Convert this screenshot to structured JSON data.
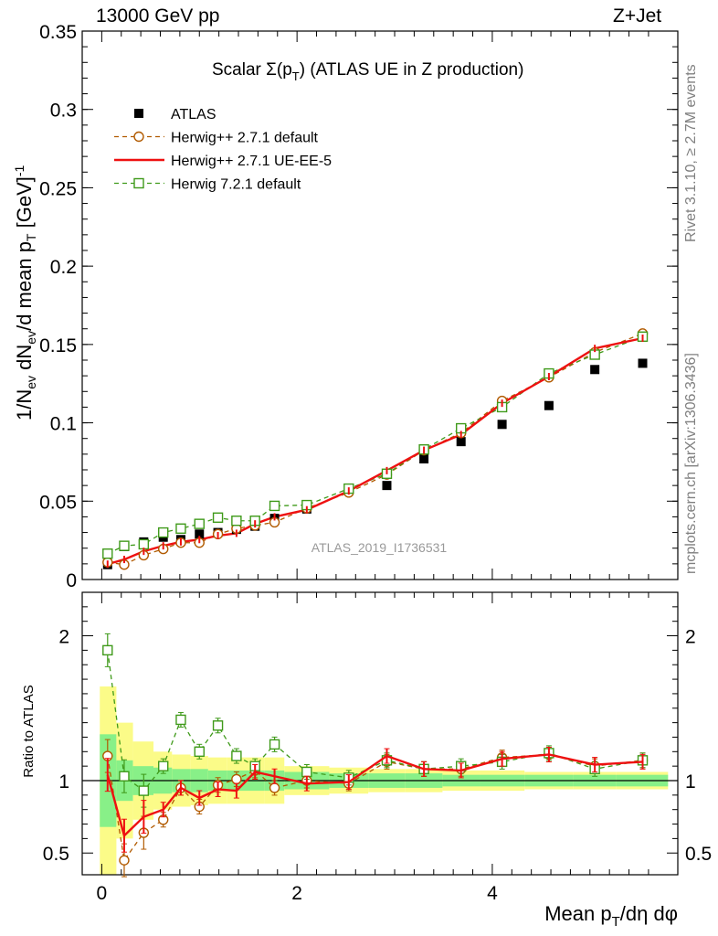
{
  "header": {
    "left": "13000 GeV pp",
    "right": "Z+Jet"
  },
  "side_labels": {
    "rivet": "Rivet 3.1.10, ≥ 2.7M events",
    "mcplots": "mcplots.cern.ch [arXiv:1306.3436]"
  },
  "colors": {
    "atlas": "#000000",
    "herwig_pp_default": "#b15a00",
    "herwig_pp_ueee5": "#ee1111",
    "herwig_7": "#3f9a1a",
    "band_inner": "#88f088",
    "band_outer": "#fbfb88"
  },
  "chart_data": [
    {
      "type": "scatter",
      "panel": "main",
      "title": "Scalar Σ(pT) (ATLAS UE in Z production)",
      "xlabel": "Mean pT/dη dφ",
      "ylabel": "1/Nev dNev/d mean pT [GeV]⁻¹",
      "watermark": "ATLAS_2019_I1736531",
      "xlim": [
        -0.2,
        5.9
      ],
      "ylim": [
        0,
        0.35
      ],
      "yticks": [
        0,
        0.05,
        0.1,
        0.15,
        0.2,
        0.25,
        0.3,
        0.35
      ],
      "ytick_labels": [
        "0",
        "0.05",
        "0.1",
        "0.15",
        "0.2",
        "0.25",
        "0.3",
        "0.35"
      ],
      "legend_position": "top-left",
      "x": [
        0.06,
        0.23,
        0.43,
        0.63,
        0.81,
        1.0,
        1.19,
        1.38,
        1.57,
        1.77,
        2.1,
        2.53,
        2.92,
        3.3,
        3.68,
        4.1,
        4.58,
        5.05,
        5.54
      ],
      "series": [
        {
          "name": "ATLAS",
          "marker": "filled-square",
          "values": [
            0.0095,
            0.021,
            0.024,
            0.027,
            0.0255,
            0.029,
            0.03,
            0.032,
            0.034,
            0.039,
            0.045,
            0.057,
            0.06,
            0.077,
            0.088,
            0.099,
            0.111,
            0.134,
            0.138
          ]
        },
        {
          "name": "Herwig++ 2.7.1 default",
          "marker": "open-circle",
          "line": "dashed",
          "values": [
            0.011,
            0.0095,
            0.0155,
            0.0195,
            0.0235,
            0.0235,
            0.029,
            0.0325,
            0.0345,
            0.0365,
            0.0455,
            0.0555,
            0.067,
            0.0825,
            0.0935,
            0.114,
            0.129,
            0.145,
            0.157
          ]
        },
        {
          "name": "Herwig++ 2.7.1 UE-EE-5",
          "marker": "none",
          "line": "solid",
          "values": [
            0.0098,
            0.0128,
            0.018,
            0.0215,
            0.024,
            0.0255,
            0.028,
            0.0295,
            0.0355,
            0.04,
            0.0445,
            0.0565,
            0.0695,
            0.0825,
            0.0925,
            0.1125,
            0.1295,
            0.1475,
            0.154
          ]
        },
        {
          "name": "Herwig 7.2.1 default",
          "marker": "open-square",
          "line": "dashed",
          "values": [
            0.0165,
            0.0215,
            0.0225,
            0.03,
            0.0325,
            0.0355,
            0.0395,
            0.0375,
            0.0375,
            0.047,
            0.0475,
            0.058,
            0.0675,
            0.083,
            0.0965,
            0.11,
            0.1315,
            0.1435,
            0.155
          ]
        }
      ]
    },
    {
      "type": "line",
      "panel": "ratio",
      "ylabel": "Ratio to ATLAS",
      "xlabel": "Mean pT/dη dφ",
      "xlim": [
        -0.2,
        5.9
      ],
      "ylim": [
        0.35,
        2.3
      ],
      "yticks": [
        0.5,
        1,
        2
      ],
      "ytick_labels": [
        "0.5",
        "1",
        "2"
      ],
      "xticks": [
        0,
        2,
        4
      ],
      "xtick_labels": [
        "0",
        "2",
        "4"
      ],
      "x": [
        0.06,
        0.23,
        0.43,
        0.63,
        0.81,
        1.0,
        1.19,
        1.38,
        1.57,
        1.77,
        2.1,
        2.53,
        2.92,
        3.3,
        3.68,
        4.1,
        4.58,
        5.05,
        5.54
      ],
      "bin_edges": [
        -0.02,
        0.15,
        0.32,
        0.53,
        0.72,
        0.91,
        1.09,
        1.28,
        1.47,
        1.67,
        1.87,
        2.33,
        2.73,
        3.11,
        3.49,
        3.87,
        4.33,
        4.83,
        5.27,
        5.8
      ],
      "uncertainty_band_inner": [
        0.32,
        0.14,
        0.1,
        0.09,
        0.08,
        0.08,
        0.07,
        0.07,
        0.07,
        0.07,
        0.06,
        0.05,
        0.05,
        0.05,
        0.04,
        0.04,
        0.04,
        0.04,
        0.04
      ],
      "uncertainty_band_outer": [
        0.65,
        0.4,
        0.27,
        0.2,
        0.18,
        0.17,
        0.16,
        0.16,
        0.16,
        0.16,
        0.1,
        0.09,
        0.08,
        0.08,
        0.07,
        0.07,
        0.06,
        0.06,
        0.06
      ],
      "series": [
        {
          "name": "Herwig++ 2.7.1 default",
          "marker": "open-circle",
          "line": "dashed",
          "values": [
            1.17,
            0.45,
            0.64,
            0.73,
            0.95,
            0.82,
            0.97,
            1.01,
            1.07,
            0.95,
            1.0,
            0.98,
            1.13,
            1.08,
            1.08,
            1.16,
            1.18,
            1.1,
            1.14
          ]
        },
        {
          "name": "Herwig++ 2.7.1 UE-EE-5",
          "marker": "none",
          "line": "solid",
          "values": [
            1.04,
            0.62,
            0.75,
            0.8,
            0.95,
            0.88,
            0.94,
            0.93,
            1.06,
            1.03,
            0.98,
            0.99,
            1.17,
            1.08,
            1.07,
            1.15,
            1.18,
            1.11,
            1.13
          ]
        },
        {
          "name": "Herwig 7.2.1 default",
          "marker": "open-square",
          "line": "dashed",
          "values": [
            1.9,
            1.03,
            0.93,
            1.1,
            1.42,
            1.2,
            1.38,
            1.17,
            1.1,
            1.25,
            1.06,
            1.02,
            1.14,
            1.08,
            1.1,
            1.13,
            1.19,
            1.08,
            1.14
          ]
        }
      ]
    }
  ]
}
